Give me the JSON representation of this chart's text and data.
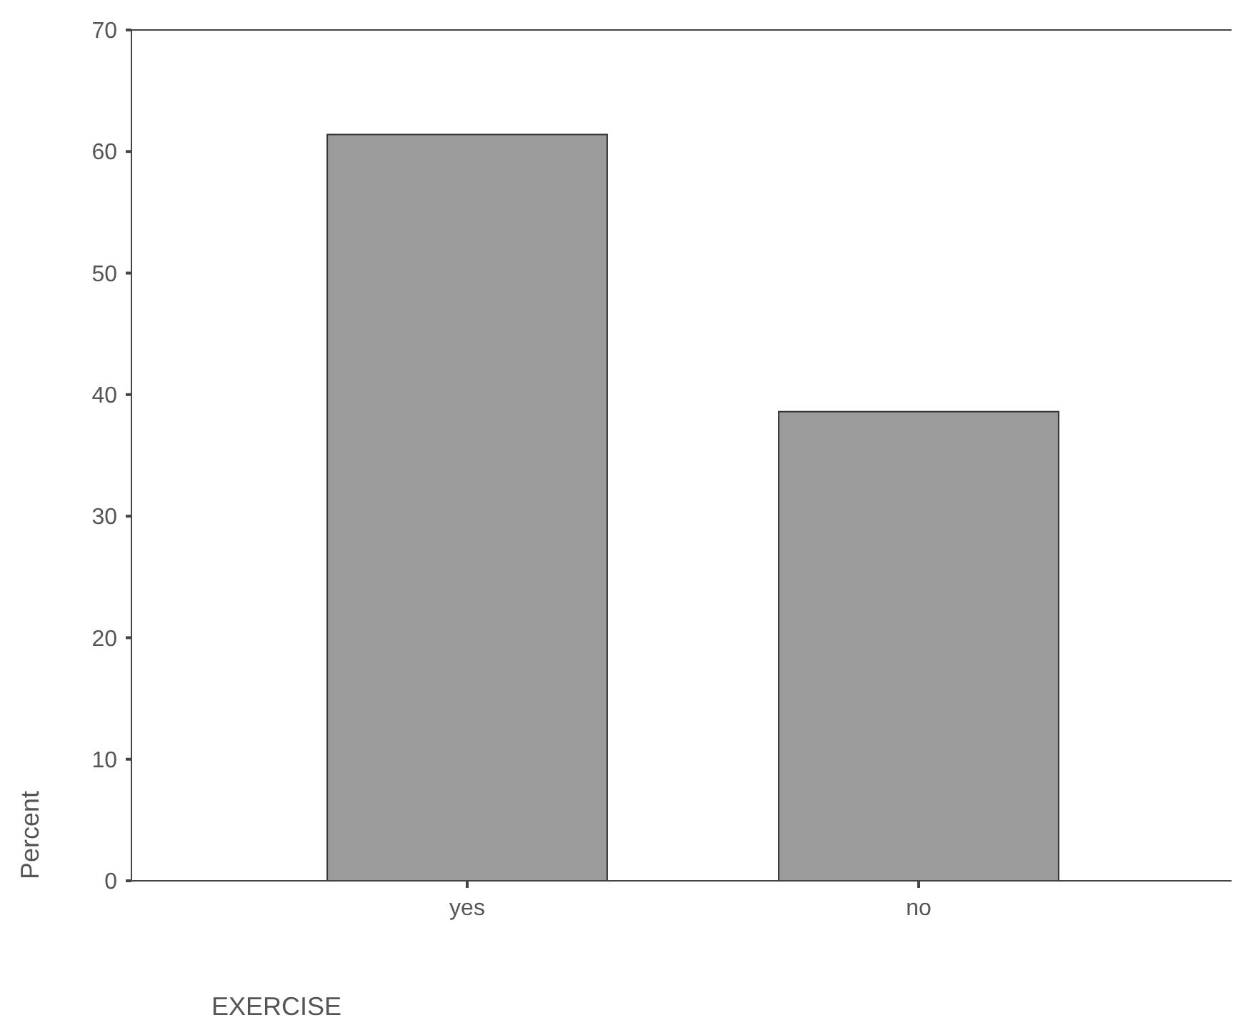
{
  "chart_data": {
    "type": "bar",
    "xlabel": "EXERCISE",
    "ylabel": "Percent",
    "categories": [
      "yes",
      "no"
    ],
    "values": [
      61.4,
      38.6
    ],
    "color": "#9b9b9b",
    "ylim": [
      0,
      70
    ],
    "yticks": [
      0,
      10,
      20,
      30,
      40,
      50,
      60,
      70
    ],
    "grid": false
  }
}
